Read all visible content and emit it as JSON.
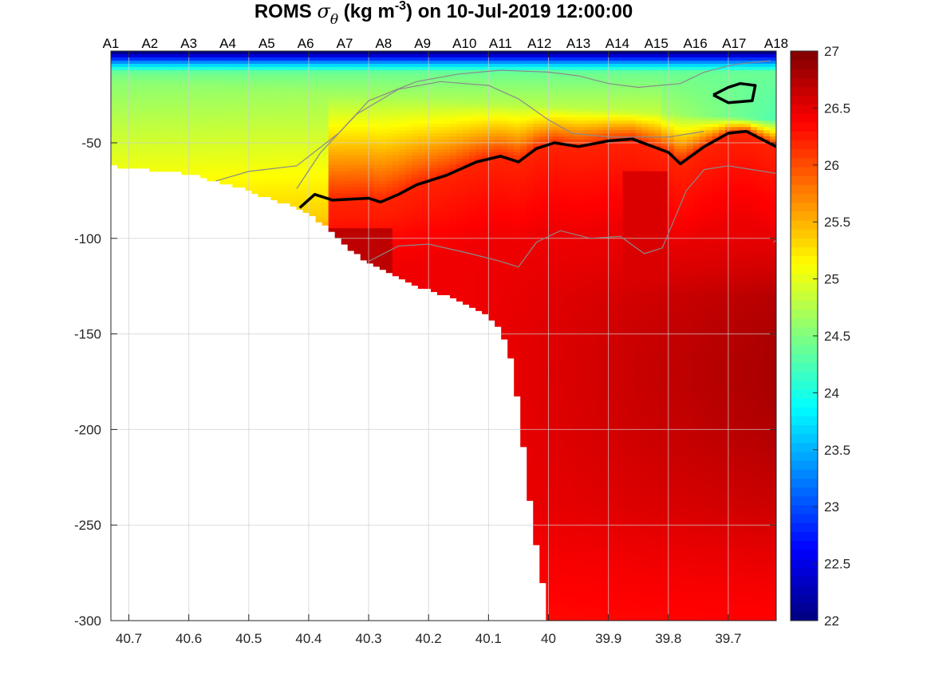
{
  "chart_data": {
    "type": "heatmap",
    "title": {
      "prefix": "ROMS ",
      "sigma": "σ",
      "theta": "θ",
      "units_main": " (kg m",
      "units_exp": "-3",
      "suffix": ") on 10-Jul-2019 12:00:00"
    },
    "xlabel": "",
    "ylabel": "",
    "x_range": [
      40.73,
      39.62
    ],
    "y_range": [
      -300,
      -2
    ],
    "x_ticks": [
      {
        "value": 40.7,
        "label": "40.7"
      },
      {
        "value": 40.6,
        "label": "40.6"
      },
      {
        "value": 40.5,
        "label": "40.5"
      },
      {
        "value": 40.4,
        "label": "40.4"
      },
      {
        "value": 40.3,
        "label": "40.3"
      },
      {
        "value": 40.2,
        "label": "40.2"
      },
      {
        "value": 40.1,
        "label": "40.1"
      },
      {
        "value": 40.0,
        "label": "40"
      },
      {
        "value": 39.9,
        "label": "39.9"
      },
      {
        "value": 39.8,
        "label": "39.8"
      },
      {
        "value": 39.7,
        "label": "39.7"
      }
    ],
    "y_ticks": [
      {
        "value": -50,
        "label": "-50"
      },
      {
        "value": -100,
        "label": "-100"
      },
      {
        "value": -150,
        "label": "-150"
      },
      {
        "value": -200,
        "label": "-200"
      },
      {
        "value": -250,
        "label": "-250"
      },
      {
        "value": -300,
        "label": "-300"
      }
    ],
    "stations": [
      {
        "label": "A1",
        "x": 40.73
      },
      {
        "label": "A2",
        "x": 40.665
      },
      {
        "label": "A3",
        "x": 40.6
      },
      {
        "label": "A4",
        "x": 40.535
      },
      {
        "label": "A5",
        "x": 40.47
      },
      {
        "label": "A6",
        "x": 40.405
      },
      {
        "label": "A7",
        "x": 40.34
      },
      {
        "label": "A8",
        "x": 40.275
      },
      {
        "label": "A9",
        "x": 40.21
      },
      {
        "label": "A10",
        "x": 40.14
      },
      {
        "label": "A11",
        "x": 40.08
      },
      {
        "label": "A12",
        "x": 40.015
      },
      {
        "label": "A13",
        "x": 39.95
      },
      {
        "label": "A14",
        "x": 39.885
      },
      {
        "label": "A15",
        "x": 39.82
      },
      {
        "label": "A16",
        "x": 39.755
      },
      {
        "label": "A17",
        "x": 39.69
      },
      {
        "label": "A18",
        "x": 39.62
      }
    ],
    "colorbar": {
      "min": 22,
      "max": 27,
      "colormap": "jet",
      "ticks": [
        {
          "value": 22,
          "label": "22"
        },
        {
          "value": 22.5,
          "label": "22.5"
        },
        {
          "value": 23,
          "label": "23"
        },
        {
          "value": 23.5,
          "label": "23.5"
        },
        {
          "value": 24,
          "label": "24"
        },
        {
          "value": 24.5,
          "label": "24.5"
        },
        {
          "value": 25,
          "label": "25"
        },
        {
          "value": 25.5,
          "label": "25.5"
        },
        {
          "value": 26,
          "label": "26"
        },
        {
          "value": 26.5,
          "label": "26.5"
        },
        {
          "value": 27,
          "label": "27"
        }
      ]
    },
    "bathymetry": [
      {
        "x": 40.73,
        "y": -62
      },
      {
        "x": 40.6,
        "y": -66
      },
      {
        "x": 40.5,
        "y": -75
      },
      {
        "x": 40.42,
        "y": -84
      },
      {
        "x": 40.37,
        "y": -93
      },
      {
        "x": 40.34,
        "y": -103
      },
      {
        "x": 40.3,
        "y": -113
      },
      {
        "x": 40.25,
        "y": -121
      },
      {
        "x": 40.2,
        "y": -127
      },
      {
        "x": 40.15,
        "y": -132
      },
      {
        "x": 40.1,
        "y": -140
      },
      {
        "x": 40.08,
        "y": -148
      },
      {
        "x": 40.06,
        "y": -165
      },
      {
        "x": 40.045,
        "y": -200
      },
      {
        "x": 40.03,
        "y": -240
      },
      {
        "x": 40.015,
        "y": -270
      },
      {
        "x": 40.0,
        "y": -300
      }
    ],
    "contour_26_2": [
      {
        "x": 40.415,
        "y": -84
      },
      {
        "x": 40.39,
        "y": -77
      },
      {
        "x": 40.36,
        "y": -80
      },
      {
        "x": 40.3,
        "y": -79
      },
      {
        "x": 40.28,
        "y": -81
      },
      {
        "x": 40.25,
        "y": -77
      },
      {
        "x": 40.22,
        "y": -72
      },
      {
        "x": 40.17,
        "y": -67
      },
      {
        "x": 40.12,
        "y": -60
      },
      {
        "x": 40.08,
        "y": -57
      },
      {
        "x": 40.05,
        "y": -60
      },
      {
        "x": 40.02,
        "y": -53
      },
      {
        "x": 39.99,
        "y": -50
      },
      {
        "x": 39.95,
        "y": -52
      },
      {
        "x": 39.9,
        "y": -49
      },
      {
        "x": 39.86,
        "y": -48
      },
      {
        "x": 39.8,
        "y": -55
      },
      {
        "x": 39.78,
        "y": -61
      },
      {
        "x": 39.74,
        "y": -52
      },
      {
        "x": 39.7,
        "y": -45
      },
      {
        "x": 39.67,
        "y": -44
      },
      {
        "x": 39.62,
        "y": -52
      }
    ],
    "contour_26_2_pocket": [
      {
        "x": 39.725,
        "y": -25
      },
      {
        "x": 39.7,
        "y": -21
      },
      {
        "x": 39.68,
        "y": -19
      },
      {
        "x": 39.655,
        "y": -20
      },
      {
        "x": 39.66,
        "y": -28
      },
      {
        "x": 39.7,
        "y": -29
      },
      {
        "x": 39.725,
        "y": -25
      }
    ],
    "grey_contours": [
      [
        {
          "x": 40.555,
          "y": -70
        },
        {
          "x": 40.5,
          "y": -65
        },
        {
          "x": 40.42,
          "y": -62
        },
        {
          "x": 40.35,
          "y": -45
        },
        {
          "x": 40.3,
          "y": -28
        },
        {
          "x": 40.22,
          "y": -18
        },
        {
          "x": 40.15,
          "y": -14
        },
        {
          "x": 40.08,
          "y": -12
        },
        {
          "x": 40.0,
          "y": -13
        },
        {
          "x": 39.95,
          "y": -15
        },
        {
          "x": 39.9,
          "y": -19
        },
        {
          "x": 39.85,
          "y": -21
        },
        {
          "x": 39.78,
          "y": -19
        },
        {
          "x": 39.74,
          "y": -13
        },
        {
          "x": 39.69,
          "y": -9
        },
        {
          "x": 39.63,
          "y": -7
        }
      ],
      [
        {
          "x": 40.42,
          "y": -74
        },
        {
          "x": 40.38,
          "y": -55
        },
        {
          "x": 40.32,
          "y": -35
        },
        {
          "x": 40.25,
          "y": -22
        },
        {
          "x": 40.18,
          "y": -18
        },
        {
          "x": 40.1,
          "y": -20
        },
        {
          "x": 40.05,
          "y": -27
        },
        {
          "x": 40.0,
          "y": -38
        },
        {
          "x": 39.96,
          "y": -45
        },
        {
          "x": 39.9,
          "y": -47
        },
        {
          "x": 39.8,
          "y": -47
        },
        {
          "x": 39.74,
          "y": -44
        }
      ],
      [
        {
          "x": 40.3,
          "y": -112
        },
        {
          "x": 40.25,
          "y": -104
        },
        {
          "x": 40.2,
          "y": -103
        },
        {
          "x": 40.13,
          "y": -108
        },
        {
          "x": 40.08,
          "y": -112
        },
        {
          "x": 40.05,
          "y": -115
        },
        {
          "x": 40.02,
          "y": -102
        },
        {
          "x": 39.98,
          "y": -96
        },
        {
          "x": 39.93,
          "y": -100
        },
        {
          "x": 39.88,
          "y": -99
        },
        {
          "x": 39.84,
          "y": -108
        },
        {
          "x": 39.81,
          "y": -105
        },
        {
          "x": 39.79,
          "y": -90
        },
        {
          "x": 39.77,
          "y": -75
        },
        {
          "x": 39.74,
          "y": -64
        },
        {
          "x": 39.7,
          "y": -62
        },
        {
          "x": 39.66,
          "y": -64
        },
        {
          "x": 39.62,
          "y": -66
        }
      ],
      [
        {
          "x": 39.62,
          "y": -85
        },
        {
          "x": 39.6,
          "y": -97
        },
        {
          "x": 39.625,
          "y": -102
        }
      ]
    ]
  }
}
